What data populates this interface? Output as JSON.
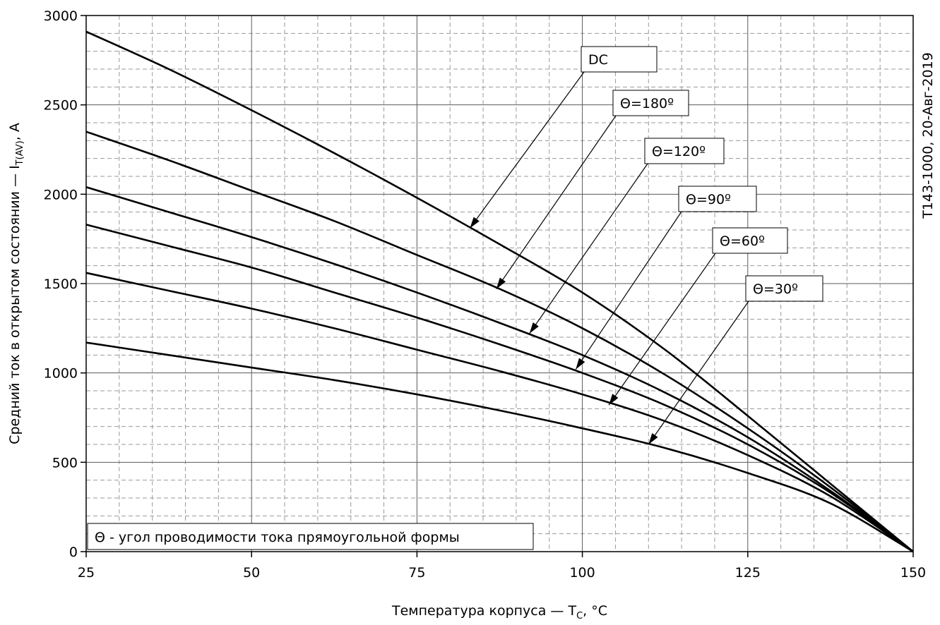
{
  "chart_data": {
    "type": "line",
    "title": "",
    "xlabel": "Температура корпуса — T",
    "xlabel_sub": "C",
    "xlabel_suffix": ", °C",
    "ylabel": "Средний ток в открытом состоянии — I",
    "ylabel_sub": "T(AV)",
    "ylabel_suffix": ", А",
    "side_note": "T143-1000, 20-Авг-2019",
    "legend_note": "Θ - угол проводимости тока прямоугольной формы",
    "xlim": [
      25,
      150
    ],
    "ylim": [
      0,
      3000
    ],
    "x_ticks": [
      25,
      50,
      75,
      100,
      125,
      150
    ],
    "y_ticks": [
      0,
      500,
      1000,
      1500,
      2000,
      2500,
      3000
    ],
    "grid": "major solid, minor dashed",
    "series": [
      {
        "name": "DC",
        "x": [
          25,
          37.5,
          50,
          62.5,
          75,
          87.5,
          100,
          112.5,
          125,
          137.5,
          150
        ],
        "y": [
          2910,
          2700,
          2470,
          2230,
          1980,
          1720,
          1450,
          1130,
          760,
          380,
          0
        ],
        "arrow_to": [
          83,
          1810
        ]
      },
      {
        "name": "Θ=180º",
        "x": [
          25,
          37.5,
          50,
          62.5,
          75,
          87.5,
          100,
          112.5,
          125,
          137.5,
          150
        ],
        "y": [
          2350,
          2190,
          2020,
          1850,
          1660,
          1470,
          1250,
          990,
          690,
          360,
          0
        ],
        "arrow_to": [
          87,
          1470
        ]
      },
      {
        "name": "Θ=120º",
        "x": [
          25,
          37.5,
          50,
          62.5,
          75,
          87.5,
          100,
          112.5,
          125,
          137.5,
          150
        ],
        "y": [
          2040,
          1900,
          1760,
          1610,
          1450,
          1280,
          1100,
          890,
          640,
          340,
          0
        ],
        "arrow_to": [
          92,
          1220
        ]
      },
      {
        "name": "Θ=90º",
        "x": [
          25,
          37.5,
          50,
          62.5,
          75,
          87.5,
          100,
          112.5,
          125,
          137.5,
          150
        ],
        "y": [
          1830,
          1710,
          1590,
          1450,
          1310,
          1160,
          1000,
          820,
          600,
          330,
          0
        ],
        "arrow_to": [
          99,
          1020
        ]
      },
      {
        "name": "Θ=60º",
        "x": [
          25,
          37.5,
          50,
          62.5,
          75,
          87.5,
          100,
          112.5,
          125,
          137.5,
          150
        ],
        "y": [
          1560,
          1460,
          1360,
          1250,
          1130,
          1010,
          880,
          730,
          540,
          310,
          0
        ],
        "arrow_to": [
          104,
          820
        ]
      },
      {
        "name": "Θ=30º",
        "x": [
          25,
          37.5,
          50,
          62.5,
          75,
          87.5,
          100,
          112.5,
          125,
          137.5,
          150
        ],
        "y": [
          1170,
          1100,
          1030,
          960,
          880,
          790,
          690,
          580,
          440,
          270,
          0
        ],
        "arrow_to": [
          110,
          600
        ]
      }
    ]
  }
}
